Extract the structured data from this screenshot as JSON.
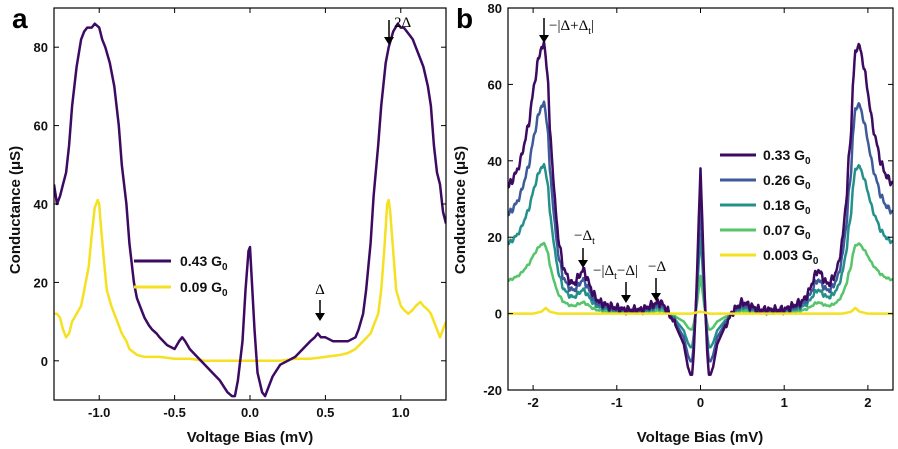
{
  "chart_data": [
    {
      "panel_label": "a",
      "type": "line",
      "xlabel": "Voltage Bias (mV)",
      "ylabel": "Conductance (μS)",
      "ylabel_mu": "μ",
      "xlim": [
        -1.3,
        1.3
      ],
      "ylim": [
        -10,
        90
      ],
      "xticks": [
        -1.0,
        -0.5,
        0.0,
        0.5,
        1.0
      ],
      "xtick_labels": [
        "-1.0",
        "-0.5",
        "0.0",
        "0.5",
        "1.0"
      ],
      "yticks": [
        0,
        20,
        40,
        60,
        80
      ],
      "ytick_labels": [
        "0",
        "20",
        "40",
        "60",
        "80"
      ],
      "legend_position": "middle-left",
      "series": [
        {
          "name": "0.43 G0",
          "label_main": "0.43 G",
          "label_sub": "0",
          "color": "#3d0a62",
          "x": [
            -1.3,
            -1.28,
            -1.26,
            -1.24,
            -1.22,
            -1.2,
            -1.18,
            -1.15,
            -1.12,
            -1.1,
            -1.08,
            -1.05,
            -1.03,
            -1.0,
            -0.98,
            -0.96,
            -0.93,
            -0.9,
            -0.87,
            -0.85,
            -0.82,
            -0.8,
            -0.77,
            -0.75,
            -0.72,
            -0.7,
            -0.67,
            -0.65,
            -0.62,
            -0.6,
            -0.55,
            -0.5,
            -0.47,
            -0.45,
            -0.43,
            -0.4,
            -0.35,
            -0.3,
            -0.25,
            -0.2,
            -0.15,
            -0.12,
            -0.1,
            -0.08,
            -0.05,
            -0.03,
            -0.01,
            0.0,
            0.01,
            0.03,
            0.05,
            0.08,
            0.1,
            0.12,
            0.15,
            0.2,
            0.25,
            0.3,
            0.35,
            0.4,
            0.43,
            0.45,
            0.47,
            0.5,
            0.55,
            0.6,
            0.65,
            0.7,
            0.72,
            0.75,
            0.77,
            0.8,
            0.82,
            0.85,
            0.87,
            0.9,
            0.92,
            0.95,
            0.98,
            1.0,
            1.02,
            1.04,
            1.06,
            1.08,
            1.1,
            1.13,
            1.15,
            1.18,
            1.2,
            1.22,
            1.24,
            1.26,
            1.28,
            1.3
          ],
          "values": [
            45,
            40,
            42,
            45,
            48,
            55,
            65,
            75,
            82,
            84,
            85,
            85,
            86,
            85,
            82,
            80,
            76,
            70,
            60,
            50,
            40,
            30,
            20,
            16,
            13,
            11,
            9,
            8,
            7,
            6,
            4,
            3,
            5,
            6,
            5,
            3,
            1,
            -1,
            -3,
            -5,
            -8,
            -9,
            -9,
            -5,
            5,
            18,
            28,
            29,
            22,
            8,
            -3,
            -8,
            -9,
            -7,
            -4,
            -1,
            0,
            1,
            3,
            5,
            6,
            7,
            6,
            6,
            5,
            5,
            5,
            6,
            8,
            12,
            18,
            30,
            42,
            55,
            65,
            76,
            80,
            84,
            86,
            85,
            85,
            84,
            83,
            82,
            80,
            77,
            75,
            70,
            65,
            55,
            48,
            45,
            38,
            35
          ]
        },
        {
          "name": "0.09 G0",
          "label_main": "0.09 G",
          "label_sub": "0",
          "color": "#f5e121",
          "x": [
            -1.3,
            -1.28,
            -1.26,
            -1.24,
            -1.22,
            -1.2,
            -1.18,
            -1.15,
            -1.12,
            -1.1,
            -1.07,
            -1.05,
            -1.03,
            -1.01,
            -1.0,
            -0.99,
            -0.97,
            -0.95,
            -0.92,
            -0.9,
            -0.87,
            -0.85,
            -0.82,
            -0.8,
            -0.75,
            -0.7,
            -0.65,
            -0.6,
            -0.5,
            -0.4,
            -0.3,
            -0.2,
            -0.1,
            0.0,
            0.1,
            0.2,
            0.3,
            0.4,
            0.5,
            0.6,
            0.65,
            0.7,
            0.75,
            0.8,
            0.82,
            0.85,
            0.87,
            0.89,
            0.91,
            0.92,
            0.93,
            0.95,
            0.97,
            1.0,
            1.02,
            1.05,
            1.08,
            1.1,
            1.13,
            1.15,
            1.18,
            1.2,
            1.22,
            1.24,
            1.26,
            1.28,
            1.3
          ],
          "values": [
            12,
            12,
            11,
            8,
            6,
            7,
            10,
            12,
            14,
            18,
            24,
            32,
            39,
            41,
            40,
            35,
            26,
            18,
            14,
            12,
            9,
            7,
            5,
            3,
            1.5,
            1,
            1,
            1,
            0.5,
            0.5,
            0,
            0,
            0,
            0,
            0,
            0,
            0.5,
            0.5,
            1,
            1.5,
            2,
            3,
            5,
            7,
            9,
            12,
            18,
            28,
            40,
            41,
            38,
            28,
            18,
            14,
            13,
            12,
            13,
            14,
            15,
            14,
            13,
            12,
            10,
            8,
            6,
            8,
            10
          ]
        }
      ],
      "annotations": [
        {
          "id": "delta",
          "text": "Δ",
          "x": 0.45,
          "y": 6.5
        },
        {
          "id": "two-delta",
          "text": "2Δ",
          "x": 0.93,
          "y": 86
        }
      ]
    },
    {
      "panel_label": "b",
      "type": "line",
      "xlabel": "Voltage Bias (mV)",
      "ylabel": "Conductance (μS)",
      "ylabel_mu": "μ",
      "xlim": [
        -2.3,
        2.3
      ],
      "ylim": [
        -20,
        80
      ],
      "xticks": [
        -2,
        -1,
        0,
        1,
        2
      ],
      "xtick_labels": [
        "-2",
        "-1",
        "0",
        "1",
        "2"
      ],
      "yticks": [
        -20,
        0,
        20,
        40,
        60,
        80
      ],
      "ytick_labels": [
        "-20",
        "0",
        "20",
        "40",
        "60",
        "80"
      ],
      "legend_position": "right",
      "series": [
        {
          "name": "0.33 G0",
          "label_main": "0.33 G",
          "label_sub": "0",
          "color": "#3d0a62",
          "scale": 1.0
        },
        {
          "name": "0.26 G0",
          "label_main": "0.26 G",
          "label_sub": "0",
          "color": "#3d5a99",
          "scale": 0.78
        },
        {
          "name": "0.18 G0",
          "label_main": "0.18 G",
          "label_sub": "0",
          "color": "#24908a",
          "scale": 0.55
        },
        {
          "name": "0.07 G0",
          "label_main": "0.07 G",
          "label_sub": "0",
          "color": "#56c46a",
          "scale": 0.26
        },
        {
          "name": "0.003 G0",
          "label_main": "0.003 G",
          "label_sub": "0",
          "color": "#f5e121",
          "scale": 0.0
        }
      ],
      "base_curve": {
        "x": [
          -2.3,
          -2.25,
          -2.2,
          -2.15,
          -2.1,
          -2.05,
          -2.0,
          -1.95,
          -1.9,
          -1.87,
          -1.85,
          -1.82,
          -1.8,
          -1.77,
          -1.75,
          -1.72,
          -1.7,
          -1.67,
          -1.65,
          -1.6,
          -1.55,
          -1.5,
          -1.45,
          -1.4,
          -1.35,
          -1.3,
          -1.25,
          -1.2,
          -1.1,
          -1.0,
          -0.9,
          -0.85,
          -0.8,
          -0.7,
          -0.6,
          -0.5,
          -0.45,
          -0.4,
          -0.3,
          -0.2,
          -0.15,
          -0.12,
          -0.1,
          -0.08,
          -0.05,
          -0.02,
          0.0,
          0.02,
          0.05,
          0.08,
          0.1,
          0.12,
          0.15,
          0.2,
          0.3,
          0.4,
          0.45,
          0.5,
          0.6,
          0.7,
          0.8,
          0.9,
          1.0,
          1.1,
          1.2,
          1.25,
          1.3,
          1.35,
          1.4,
          1.45,
          1.5,
          1.55,
          1.6,
          1.65,
          1.67,
          1.7,
          1.72,
          1.75,
          1.77,
          1.8,
          1.82,
          1.85,
          1.87,
          1.9,
          1.95,
          2.0,
          2.05,
          2.1,
          2.15,
          2.2,
          2.25,
          2.3
        ],
        "values": [
          33,
          35,
          37,
          40,
          45,
          50,
          58,
          65,
          70,
          70,
          68,
          60,
          48,
          40,
          32,
          25,
          20,
          16,
          13,
          10,
          8,
          8,
          10,
          11.5,
          9,
          6,
          4,
          3,
          2,
          1.5,
          1,
          1,
          1,
          1,
          2,
          3,
          2.5,
          1,
          -3,
          -8,
          -14,
          -16,
          -16,
          -10,
          5,
          25,
          38,
          25,
          5,
          -10,
          -16,
          -16,
          -14,
          -8,
          -3,
          1,
          2,
          3,
          2,
          1,
          1,
          1,
          1,
          2,
          3,
          4,
          6,
          9,
          11.5,
          10,
          8,
          8,
          10,
          13,
          16,
          20,
          25,
          32,
          40,
          48,
          60,
          68,
          70,
          70,
          65,
          58,
          50,
          45,
          40,
          37,
          35,
          34
        ]
      },
      "yellow_curve": {
        "x": [
          -2.3,
          -2.0,
          -1.9,
          -1.85,
          -1.8,
          -1.7,
          -1.0,
          -0.5,
          -0.2,
          -0.1,
          -0.05,
          0.0,
          0.05,
          0.1,
          0.2,
          0.5,
          1.0,
          1.7,
          1.8,
          1.85,
          1.9,
          2.0,
          2.3
        ],
        "values": [
          0,
          0,
          0.5,
          1.5,
          0.5,
          0,
          0,
          0,
          0,
          0,
          0.3,
          0.5,
          0.3,
          0,
          0,
          0,
          0,
          0,
          0.5,
          1.5,
          0.5,
          0,
          0
        ]
      },
      "annotations": [
        {
          "id": "neg-abs-delta-plus-deltat",
          "text_pre": "−|Δ+Δ",
          "text_sub": "t",
          "text_post": "|",
          "x": -1.87,
          "y": 70
        },
        {
          "id": "neg-deltat",
          "text_pre": "−Δ",
          "text_sub": "t",
          "text_post": "",
          "x": -1.4,
          "y": 11.5
        },
        {
          "id": "neg-abs-deltat-minus-delta",
          "text_pre": "−|Δ",
          "text_sub": "t",
          "text_post": "−Δ|",
          "x": -0.85,
          "y": 2
        },
        {
          "id": "neg-delta",
          "text_pre": "−Δ",
          "text_sub": "",
          "text_post": "",
          "x": -0.5,
          "y": 3
        }
      ]
    }
  ]
}
